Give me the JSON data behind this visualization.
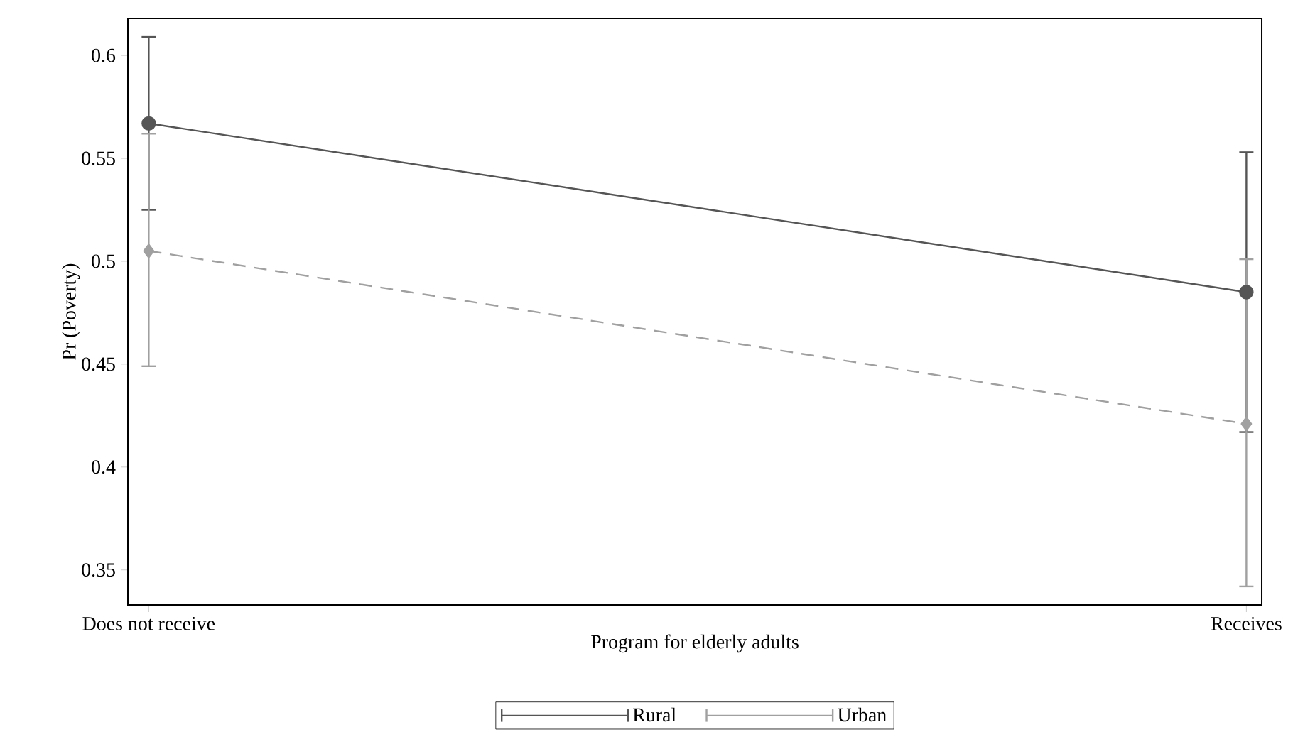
{
  "chart_data": {
    "type": "line",
    "xlabel": "Program for elderly adults",
    "ylabel": "Pr (Poverty)",
    "categories": [
      "Does not receive",
      "Receives"
    ],
    "series": [
      {
        "name": "Rural",
        "color": "#555555",
        "values": [
          0.567,
          0.485
        ],
        "errors": [
          [
            0.525,
            0.609
          ],
          [
            0.417,
            0.553
          ]
        ],
        "marker": "circle",
        "line_style": "solid"
      },
      {
        "name": "Urban",
        "color": "#a0a0a0",
        "values": [
          0.505,
          0.421
        ],
        "errors": [
          [
            0.449,
            0.562
          ],
          [
            0.342,
            0.501
          ]
        ],
        "marker": "diamond",
        "line_style": "dashed"
      }
    ],
    "ylim": [
      0.333,
      0.618
    ],
    "yticks": [
      0.35,
      0.4,
      0.45,
      0.5,
      0.55,
      0.6
    ],
    "grid": false,
    "legend": "bottom"
  }
}
